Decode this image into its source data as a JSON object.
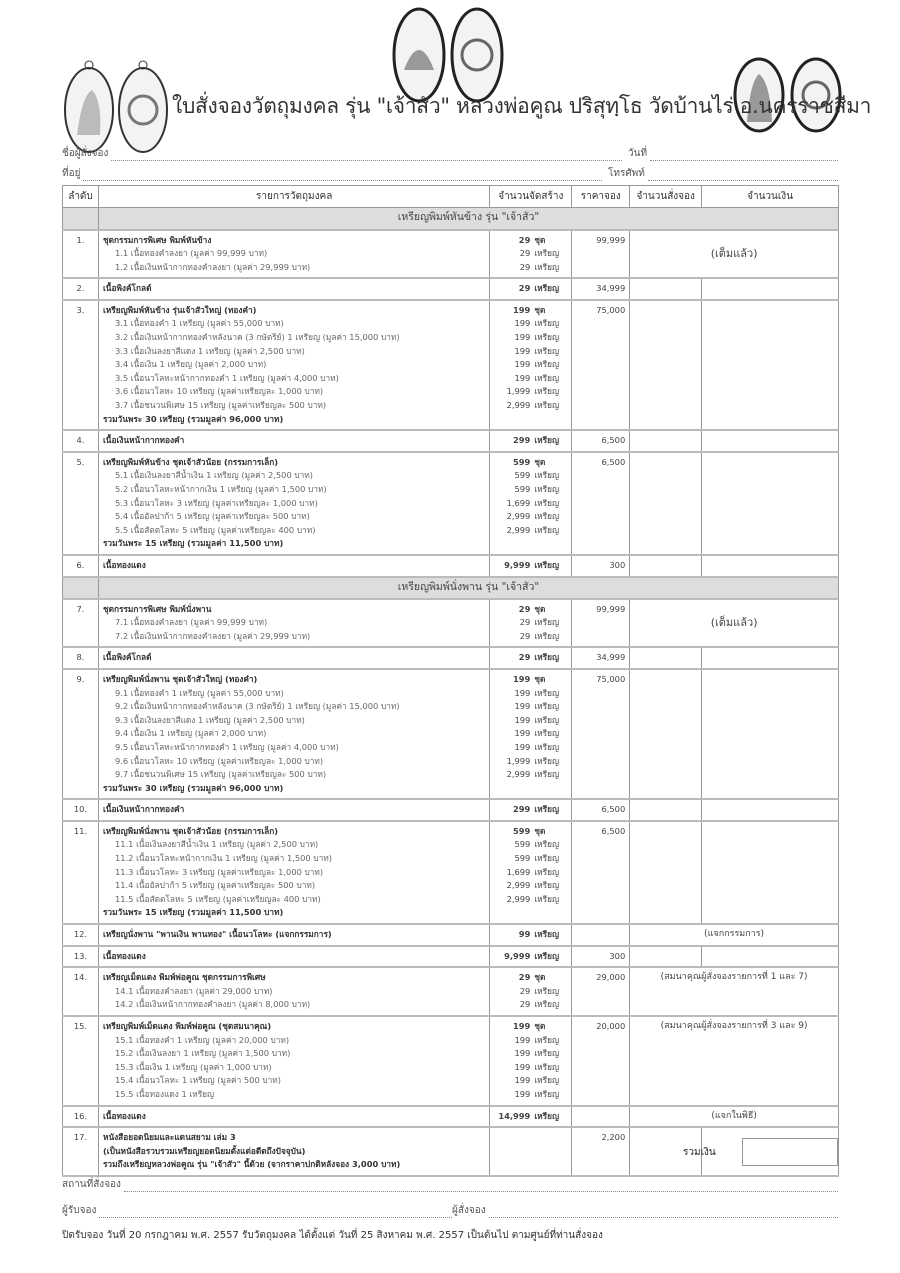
{
  "title": "ใบสั่งจองวัตถุมงคล รุ่น \"เจ้าสัว\" หลวงพ่อคูณ ปริสุทฺโธ วัดบ้านไร่ อ.นครราชสีมา",
  "fields": {
    "name": "ชื่อผู้สั่งจอง",
    "date": "วันที่",
    "address": "ที่อยู่",
    "phone": "โทรศัพท์"
  },
  "headers": [
    "ลำดับ",
    "รายการวัตถุมงคล",
    "จำนวนจัดสร้าง",
    "ราคาจอง",
    "จำนวนสั่งจอง",
    "จำนวนเงิน"
  ],
  "rows": [
    {
      "section": "เหรียญพิมพ์หันข้าง รุ่น \"เจ้าสัว\""
    },
    {
      "no": "1.",
      "price": "99,999",
      "note": "(เต็มแล้ว)",
      "noteSpan": 2,
      "lines": [
        [
          "ชุดกรรมการพิเศษ พิมพ์หันข้าง",
          "29",
          "ชุด",
          "b"
        ],
        [
          "1.1 เนื้อทองคำลงยา (มูลค่า 99,999 บาท)",
          "29",
          "เหรียญ",
          "s"
        ],
        [
          "1.2 เนื้อเงินหน้ากากทองคำลงยา (มูลค่า 29,999 บาท)",
          "29",
          "เหรียญ",
          "s"
        ]
      ]
    },
    {
      "no": "2.",
      "price": "34,999",
      "lines": [
        [
          "เนื้อพิงค์โกลด์",
          "29",
          "เหรียญ",
          "b"
        ]
      ]
    },
    {
      "no": "3.",
      "price": "75,000",
      "lines": [
        [
          "เหรียญพิมพ์หันข้าง รุ่นเจ้าสัวใหญ่ (ทองคำ)",
          "199",
          "ชุด",
          "b"
        ],
        [
          "3.1 เนื้อทองคำ 1 เหรียญ (มูลค่า 55,000 บาท)",
          "199",
          "เหรียญ",
          "s"
        ],
        [
          "3.2 เนื้อเงินหน้ากากทองคำหลังนาค (3 กษัตริย์) 1 เหรียญ (มูลค่า 15,000 บาท)",
          "199",
          "เหรียญ",
          "s"
        ],
        [
          "3.3 เนื้อเงินลงยาสีแดง 1 เหรียญ (มูลค่า 2,500 บาท)",
          "199",
          "เหรียญ",
          "s"
        ],
        [
          "3.4 เนื้อเงิน 1 เหรียญ (มูลค่า 2,000 บาท)",
          "199",
          "เหรียญ",
          "s"
        ],
        [
          "3.5 เนื้อนวโลหะหน้ากากทองคำ 1 เหรียญ (มูลค่า 4,000 บาท)",
          "199",
          "เหรียญ",
          "s"
        ],
        [
          "3.6 เนื้อนวโลหะ 10 เหรียญ (มูลค่าเหรียญละ 1,000 บาท)",
          "1,999",
          "เหรียญ",
          "s"
        ],
        [
          "3.7 เนื้อชนวนพิเศษ 15 เหรียญ (มูลค่าเหรียญละ 500 บาท)",
          "2,999",
          "เหรียญ",
          "s"
        ],
        [
          "รวมวันพระ 30 เหรียญ (รวมมูลค่า 96,000 บาท)",
          "",
          "",
          "b"
        ]
      ]
    },
    {
      "no": "4.",
      "price": "6,500",
      "lines": [
        [
          "เนื้อเงินหน้ากากทองคำ",
          "299",
          "เหรียญ",
          "b"
        ]
      ]
    },
    {
      "no": "5.",
      "price": "6,500",
      "lines": [
        [
          "เหรียญพิมพ์หันข้าง ชุดเจ้าสัวน้อย (กรรมการเล็ก)",
          "599",
          "ชุด",
          "b"
        ],
        [
          "5.1 เนื้อเงินลงยาสีน้ำเงิน 1 เหรียญ (มูลค่า 2,500 บาท)",
          "599",
          "เหรียญ",
          "s"
        ],
        [
          "5.2 เนื้อนวโลหะหน้ากากเงิน 1 เหรียญ (มูลค่า 1,500 บาท)",
          "599",
          "เหรียญ",
          "s"
        ],
        [
          "5.3 เนื้อนวโลหะ 3 เหรียญ (มูลค่าเหรียญละ 1,000 บาท)",
          "1,699",
          "เหรียญ",
          "s"
        ],
        [
          "5.4 เนื้ออัลปาก้า 5 เหรียญ (มูลค่าเหรียญละ 500 บาท)",
          "2,999",
          "เหรียญ",
          "s"
        ],
        [
          "5.5 เนื้อสัตตโลหะ 5 เหรียญ (มูลค่าเหรียญละ 400 บาท)",
          "2,999",
          "เหรียญ",
          "s"
        ],
        [
          "รวมวันพระ 15 เหรียญ (รวมมูลค่า 11,500 บาท)",
          "",
          "",
          "b"
        ]
      ]
    },
    {
      "no": "6.",
      "price": "300",
      "lines": [
        [
          "เนื้อทองแดง",
          "9,999",
          "เหรียญ",
          "b"
        ]
      ]
    },
    {
      "section": "เหรียญพิมพ์นั่งพาน รุ่น \"เจ้าสัว\""
    },
    {
      "no": "7.",
      "price": "99,999",
      "note": "(เต็มแล้ว)",
      "noteSpan": 2,
      "lines": [
        [
          "ชุดกรรมการพิเศษ พิมพ์นั่งพาน",
          "29",
          "ชุด",
          "b"
        ],
        [
          "7.1 เนื้อทองคำลงยา (มูลค่า 99,999 บาท)",
          "29",
          "เหรียญ",
          "s"
        ],
        [
          "7.2 เนื้อเงินหน้ากากทองคำลงยา (มูลค่า 29,999 บาท)",
          "29",
          "เหรียญ",
          "s"
        ]
      ]
    },
    {
      "no": "8.",
      "price": "34,999",
      "lines": [
        [
          "เนื้อพิงค์โกลด์",
          "29",
          "เหรียญ",
          "b"
        ]
      ]
    },
    {
      "no": "9.",
      "price": "75,000",
      "lines": [
        [
          "เหรียญพิมพ์นั่งพาน ชุดเจ้าสัวใหญ่ (ทองคำ)",
          "199",
          "ชุด",
          "b"
        ],
        [
          "9.1 เนื้อทองคำ 1 เหรียญ (มูลค่า 55,000 บาท)",
          "199",
          "เหรียญ",
          "s"
        ],
        [
          "9.2 เนื้อเงินหน้ากากทองคำหลังนาค (3 กษัตริย์) 1 เหรียญ (มูลค่า 15,000 บาท)",
          "199",
          "เหรียญ",
          "s"
        ],
        [
          "9.3 เนื้อเงินลงยาสีแดง 1 เหรียญ (มูลค่า 2,500 บาท)",
          "199",
          "เหรียญ",
          "s"
        ],
        [
          "9.4 เนื้อเงิน 1 เหรียญ (มูลค่า 2,000 บาท)",
          "199",
          "เหรียญ",
          "s"
        ],
        [
          "9.5 เนื้อนวโลหะหน้ากากทองคำ 1 เหรียญ (มูลค่า 4,000 บาท)",
          "199",
          "เหรียญ",
          "s"
        ],
        [
          "9.6 เนื้อนวโลหะ 10 เหรียญ (มูลค่าเหรียญละ 1,000 บาท)",
          "1,999",
          "เหรียญ",
          "s"
        ],
        [
          "9.7 เนื้อชนวนพิเศษ 15 เหรียญ (มูลค่าเหรียญละ 500 บาท)",
          "2,999",
          "เหรียญ",
          "s"
        ],
        [
          "รวมวันพระ 30 เหรียญ (รวมมูลค่า 96,000 บาท)",
          "",
          "",
          "b"
        ]
      ]
    },
    {
      "no": "10.",
      "price": "6,500",
      "lines": [
        [
          "เนื้อเงินหน้ากากทองคำ",
          "299",
          "เหรียญ",
          "b"
        ]
      ]
    },
    {
      "no": "11.",
      "price": "6,500",
      "lines": [
        [
          "เหรียญพิมพ์นั่งพาน ชุดเจ้าสัวน้อย (กรรมการเล็ก)",
          "599",
          "ชุด",
          "b"
        ],
        [
          "11.1 เนื้อเงินลงยาสีน้ำเงิน 1 เหรียญ (มูลค่า 2,500 บาท)",
          "599",
          "เหรียญ",
          "s"
        ],
        [
          "11.2 เนื้อนวโลหะหน้ากากเงิน 1 เหรียญ (มูลค่า 1,500 บาท)",
          "599",
          "เหรียญ",
          "s"
        ],
        [
          "11.3 เนื้อนวโลหะ 3 เหรียญ (มูลค่าเหรียญละ 1,000 บาท)",
          "1,699",
          "เหรียญ",
          "s"
        ],
        [
          "11.4 เนื้ออัลปาก้า 5 เหรียญ (มูลค่าเหรียญละ 500 บาท)",
          "2,999",
          "เหรียญ",
          "s"
        ],
        [
          "11.5 เนื้อสัตตโลหะ 5 เหรียญ (มูลค่าเหรียญละ 400 บาท)",
          "2,999",
          "เหรียญ",
          "s"
        ],
        [
          "รวมวันพระ 15 เหรียญ (รวมมูลค่า 11,500 บาท)",
          "",
          "",
          "b"
        ]
      ]
    },
    {
      "no": "12.",
      "price": "",
      "note": "(แจกกรรมการ)",
      "noteSpan": 2,
      "lines": [
        [
          "เหรียญนั่งพาน \"พานเงิน พานทอง\" เนื้อนวโลหะ (แจกกรรมการ)",
          "99",
          "เหรียญ",
          "b"
        ]
      ]
    },
    {
      "no": "13.",
      "price": "300",
      "lines": [
        [
          "เนื้อทองแดง",
          "9,999",
          "เหรียญ",
          "b"
        ]
      ]
    },
    {
      "no": "14.",
      "price": "29,000",
      "note": "(สมนาคุณผู้สั่งจองรายการที่ 1 และ 7)",
      "noteSpan": 2,
      "lines": [
        [
          "เหรียญเม็ดแตง พิมพ์พ่อคูณ ชุดกรรมการพิเศษ",
          "29",
          "ชุด",
          "b"
        ],
        [
          "14.1 เนื้อทองคำลงยา (มูลค่า 29,000 บาท)",
          "29",
          "เหรียญ",
          "s"
        ],
        [
          "14.2 เนื้อเงินหน้ากากทองคำลงยา (มูลค่า 8,000 บาท)",
          "29",
          "เหรียญ",
          "s"
        ]
      ]
    },
    {
      "no": "15.",
      "price": "20,000",
      "note": "(สมนาคุณผู้สั่งจองรายการที่ 3 และ 9)",
      "noteSpan": 2,
      "lines": [
        [
          "เหรียญพิมพ์เม็ดแตง พิมพ์พ่อคูณ (ชุดสมนาคุณ)",
          "199",
          "ชุด",
          "b"
        ],
        [
          "15.1 เนื้อทองคำ 1 เหรียญ (มูลค่า 20,000 บาท)",
          "199",
          "เหรียญ",
          "s"
        ],
        [
          "15.2 เนื้อเงินลงยา 1 เหรียญ (มูลค่า 1,500 บาท)",
          "199",
          "เหรียญ",
          "s"
        ],
        [
          "15.3 เนื้อเงิน 1 เหรียญ (มูลค่า 1,000 บาท)",
          "199",
          "เหรียญ",
          "s"
        ],
        [
          "15.4 เนื้อนวโลหะ 1 เหรียญ (มูลค่า 500 บาท)",
          "199",
          "เหรียญ",
          "s"
        ],
        [
          "15.5 เนื้อทองแดง 1 เหรียญ",
          "199",
          "เหรียญ",
          "s"
        ]
      ]
    },
    {
      "no": "16.",
      "price": "",
      "note": "(แจกในพิธี)",
      "noteSpan": 2,
      "lines": [
        [
          "เนื้อทองแดง",
          "14,999",
          "เหรียญ",
          "b"
        ]
      ]
    },
    {
      "no": "17.",
      "price": "2,200",
      "lines": [
        [
          "หนังสือยอดนิยมและแดนสยาม เล่ม 3",
          "",
          "",
          "b"
        ],
        [
          "(เป็นหนังสือรวบรวมเหรียญยอดนิยมตั้งแต่อดีตถึงปัจจุบัน)",
          "",
          "",
          "b"
        ],
        [
          "รวมถึงเหรียญหลวงพ่อคูณ รุ่น \"เจ้าสัว\" นี้ด้วย (จากราคาปกติหลังจอง 3,000 บาท)",
          "",
          "",
          "b"
        ]
      ]
    }
  ],
  "total_label": "รวมเงิน",
  "footer": {
    "place": "สถานที่สั่งจอง",
    "receiver": "ผู้รับจอง",
    "orderer": "ผู้สั่งจอง",
    "note": "ปิดรับจอง วันที่ 20 กรกฎาคม พ.ศ. 2557  รับวัตถุมงคล ได้ตั้งแต่ วันที่ 25 สิงหาคม พ.ศ. 2557 เป็นต้นไป ตามศูนย์ที่ท่านสั่งจอง"
  }
}
